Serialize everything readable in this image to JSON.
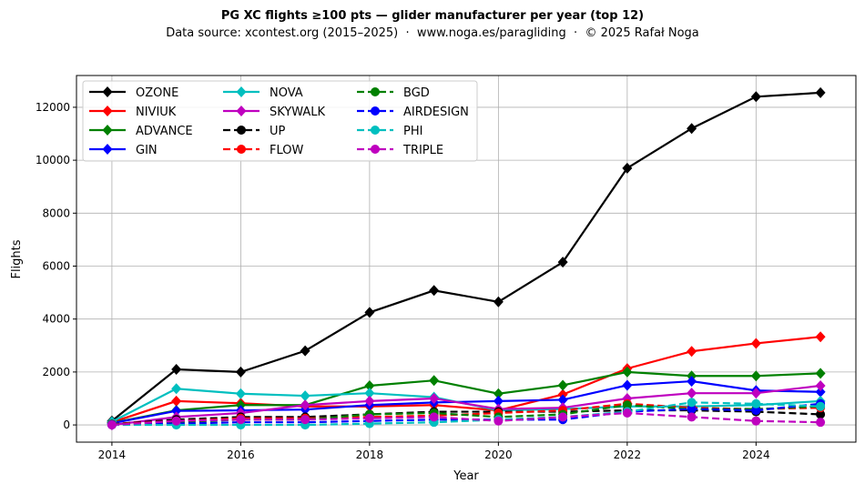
{
  "chart_data": {
    "type": "line",
    "title": "PG XC flights ≥100 pts — glider manufacturer per year (top 12)",
    "subtitle": "Data source: xcontest.org (2015–2025)  ·  www.noga.es/paragliding  ·  © 2025 Rafał Noga",
    "xlabel": "Year",
    "ylabel": "Flights",
    "xlim": [
      2013.45,
      2025.55
    ],
    "ylim": [
      -650,
      13200
    ],
    "xticks": [
      2014,
      2016,
      2018,
      2020,
      2022,
      2024
    ],
    "yticks": [
      0,
      2000,
      4000,
      6000,
      8000,
      10000,
      12000
    ],
    "grid": true,
    "legend": "top-left",
    "x": [
      2014,
      2015,
      2016,
      2017,
      2018,
      2019,
      2020,
      2021,
      2022,
      2023,
      2024,
      2025
    ],
    "series": [
      {
        "name": "OZONE",
        "color": "#000000",
        "dash": false,
        "marker": "diamond",
        "values": [
          150,
          2100,
          2000,
          2800,
          4250,
          5080,
          4650,
          6150,
          9700,
          11200,
          12400,
          12550
        ]
      },
      {
        "name": "NIVIUK",
        "color": "#ff0000",
        "dash": false,
        "marker": "diamond",
        "values": [
          100,
          900,
          820,
          700,
          700,
          750,
          550,
          1150,
          2130,
          2780,
          3080,
          3330
        ]
      },
      {
        "name": "ADVANCE",
        "color": "#008000",
        "dash": false,
        "marker": "diamond",
        "values": [
          80,
          550,
          750,
          750,
          1480,
          1680,
          1180,
          1500,
          2000,
          1850,
          1850,
          1950
        ]
      },
      {
        "name": "GIN",
        "color": "#0000ff",
        "dash": false,
        "marker": "diamond",
        "values": [
          60,
          530,
          550,
          580,
          750,
          850,
          900,
          950,
          1500,
          1650,
          1300,
          1250
        ]
      },
      {
        "name": "NOVA",
        "color": "#00bfbf",
        "dash": false,
        "marker": "diamond",
        "values": [
          120,
          1370,
          1180,
          1100,
          1200,
          1050,
          550,
          600,
          700,
          700,
          750,
          900
        ]
      },
      {
        "name": "SKYWALK",
        "color": "#bf00bf",
        "dash": false,
        "marker": "diamond",
        "values": [
          0,
          300,
          450,
          750,
          900,
          1000,
          600,
          650,
          1000,
          1200,
          1200,
          1480
        ]
      },
      {
        "name": "UP",
        "color": "#000000",
        "dash": true,
        "marker": "circle",
        "values": [
          30,
          200,
          300,
          300,
          400,
          500,
          500,
          500,
          550,
          550,
          500,
          400
        ]
      },
      {
        "name": "FLOW",
        "color": "#ff0000",
        "dash": true,
        "marker": "circle",
        "values": [
          30,
          150,
          250,
          250,
          300,
          350,
          450,
          550,
          800,
          650,
          600,
          650
        ]
      },
      {
        "name": "BGD",
        "color": "#008000",
        "dash": true,
        "marker": "circle",
        "values": [
          20,
          100,
          200,
          200,
          400,
          450,
          300,
          400,
          750,
          600,
          600,
          700
        ]
      },
      {
        "name": "AIRDESIGN",
        "color": "#0000ff",
        "dash": true,
        "marker": "circle",
        "values": [
          10,
          50,
          100,
          100,
          150,
          200,
          200,
          200,
          500,
          600,
          550,
          800
        ]
      },
      {
        "name": "PHI",
        "color": "#00bfbf",
        "dash": true,
        "marker": "circle",
        "values": [
          0,
          0,
          0,
          0,
          50,
          100,
          200,
          300,
          500,
          850,
          800,
          700
        ]
      },
      {
        "name": "TRIPLE",
        "color": "#bf00bf",
        "dash": true,
        "marker": "circle",
        "values": [
          0,
          150,
          200,
          200,
          250,
          300,
          150,
          300,
          450,
          300,
          150,
          100
        ]
      }
    ]
  }
}
